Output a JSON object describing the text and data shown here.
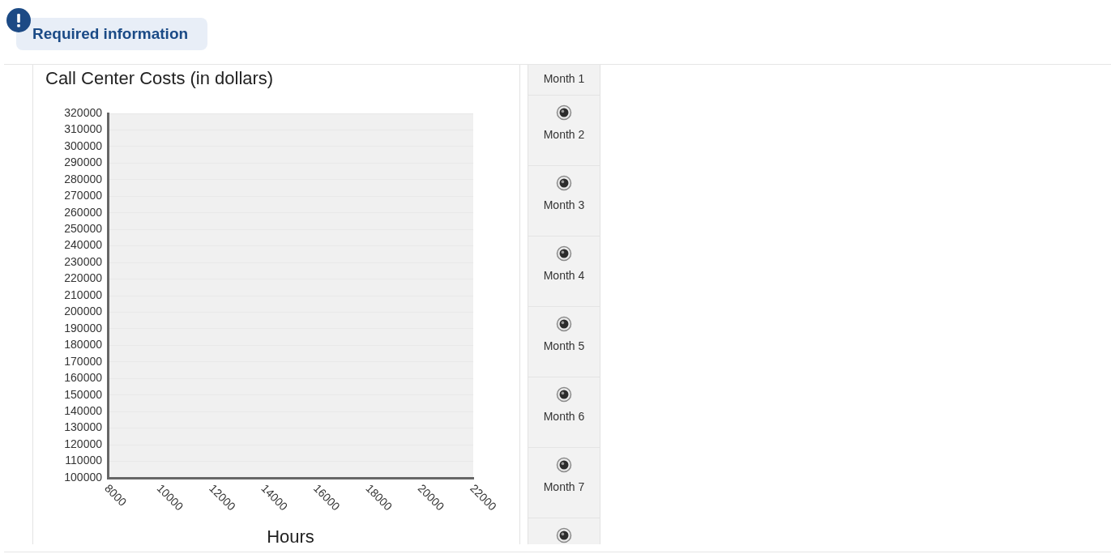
{
  "chart_data": {
    "type": "scatter",
    "title": "Call Center Costs (in dollars)",
    "xlabel": "Hours",
    "annotations": [
      "Required information",
      "Month 1",
      "Month 2",
      "Month 3",
      "Month 4",
      "Month 5",
      "Month 6",
      "Month 7"
    ],
    "xlim": [
      8000,
      22000
    ],
    "xticks": [
      8000,
      10000,
      12000,
      14000,
      16000,
      18000,
      20000,
      22000
    ],
    "ylim": [
      100000,
      320000
    ],
    "yticks": [
      100000,
      110000,
      120000,
      130000,
      140000,
      150000,
      160000,
      170000,
      180000,
      190000,
      200000,
      210000,
      220000,
      230000,
      240000,
      250000,
      260000,
      270000,
      280000,
      290000,
      300000,
      310000,
      320000
    ],
    "grid": "y"
  }
}
